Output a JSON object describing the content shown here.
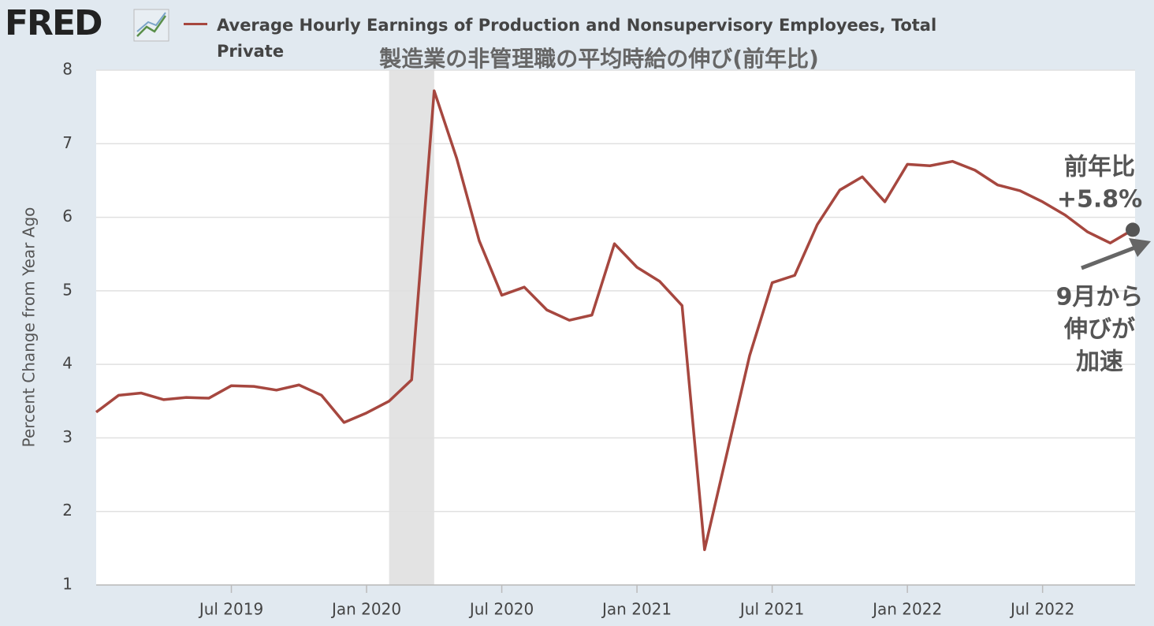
{
  "header": {
    "logo": "FRED"
  },
  "chart_data": {
    "type": "line",
    "title": "製造業の非管理職の平均時給の伸び(前年比)",
    "y_label": "Percent Change from Year Ago",
    "x": [
      "2019-01",
      "2019-02",
      "2019-03",
      "2019-04",
      "2019-05",
      "2019-06",
      "2019-07",
      "2019-08",
      "2019-09",
      "2019-10",
      "2019-11",
      "2019-12",
      "2020-01",
      "2020-02",
      "2020-03",
      "2020-04",
      "2020-05",
      "2020-06",
      "2020-07",
      "2020-08",
      "2020-09",
      "2020-10",
      "2020-11",
      "2020-12",
      "2021-01",
      "2021-02",
      "2021-03",
      "2021-04",
      "2021-05",
      "2021-06",
      "2021-07",
      "2021-08",
      "2021-09",
      "2021-10",
      "2021-11",
      "2021-12",
      "2022-01",
      "2022-02",
      "2022-03",
      "2022-04",
      "2022-05",
      "2022-06",
      "2022-07",
      "2022-08",
      "2022-09",
      "2022-10",
      "2022-11"
    ],
    "series": [
      {
        "name": "Average Hourly Earnings of Production and Nonsupervisory Employees, Total Private",
        "color": "#a6473f",
        "values": [
          3.35,
          3.58,
          3.61,
          3.52,
          3.55,
          3.54,
          3.71,
          3.7,
          3.65,
          3.72,
          3.58,
          3.21,
          3.34,
          3.5,
          3.79,
          7.72,
          6.8,
          5.68,
          4.94,
          5.05,
          4.74,
          4.6,
          4.67,
          5.64,
          5.32,
          5.13,
          4.8,
          1.48,
          2.8,
          4.12,
          5.11,
          5.21,
          5.9,
          6.37,
          6.55,
          6.21,
          6.72,
          6.7,
          6.76,
          6.64,
          6.44,
          6.36,
          6.21,
          6.03,
          5.8,
          5.65,
          5.83
        ]
      }
    ],
    "xlim": [
      "2019-01",
      "2022-11"
    ],
    "xticks": [
      {
        "value": "2019-07",
        "label": "Jul 2019"
      },
      {
        "value": "2020-01",
        "label": "Jan 2020"
      },
      {
        "value": "2020-07",
        "label": "Jul 2020"
      },
      {
        "value": "2021-01",
        "label": "Jan 2021"
      },
      {
        "value": "2021-07",
        "label": "Jul 2021"
      },
      {
        "value": "2022-01",
        "label": "Jan 2022"
      },
      {
        "value": "2022-07",
        "label": "Jul 2022"
      }
    ],
    "ylim": [
      1,
      8
    ],
    "yticks": [
      1,
      2,
      3,
      4,
      5,
      6,
      7,
      8
    ],
    "grid": true,
    "recession": [
      "2020-02",
      "2020-04"
    ],
    "annotations": [
      {
        "lines": [
          "前年比",
          "+5.8%"
        ]
      },
      {
        "lines": [
          "9月から",
          "伸びが",
          "加速"
        ]
      }
    ]
  }
}
